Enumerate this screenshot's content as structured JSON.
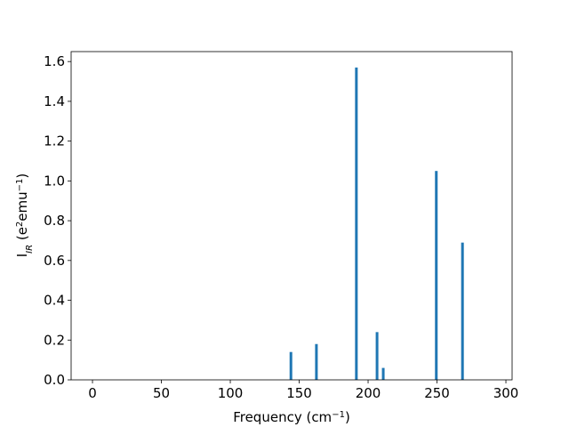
{
  "chart_data": {
    "type": "bar",
    "xlabel": [
      {
        "text": "Frequency (cm"
      },
      {
        "text": "−1",
        "shift": "super"
      },
      {
        "text": ")"
      }
    ],
    "ylabel": [
      {
        "text": "I"
      },
      {
        "text": "IR",
        "shift": "sub"
      },
      {
        "text": " (e"
      },
      {
        "text": "2",
        "shift": "super"
      },
      {
        "text": "emu"
      },
      {
        "text": "−1",
        "shift": "super"
      },
      {
        "text": ")"
      }
    ],
    "x": [
      144,
      162.5,
      191.5,
      206.5,
      211,
      249.5,
      268.5
    ],
    "values": [
      0.14,
      0.18,
      1.57,
      0.24,
      0.06,
      1.05,
      0.69
    ],
    "color": "#1f77b4",
    "xlim": [
      -15.5,
      304.5
    ],
    "xticks": [
      0,
      50,
      100,
      150,
      200,
      250,
      300
    ],
    "ylim": [
      0,
      1.65
    ],
    "yticks": [
      {
        "value": 0,
        "label": "0.0"
      },
      0.2,
      0.4,
      0.6,
      0.8,
      {
        "value": 1,
        "label": "1.0"
      },
      1.2,
      1.4,
      1.6
    ],
    "grid": false
  }
}
